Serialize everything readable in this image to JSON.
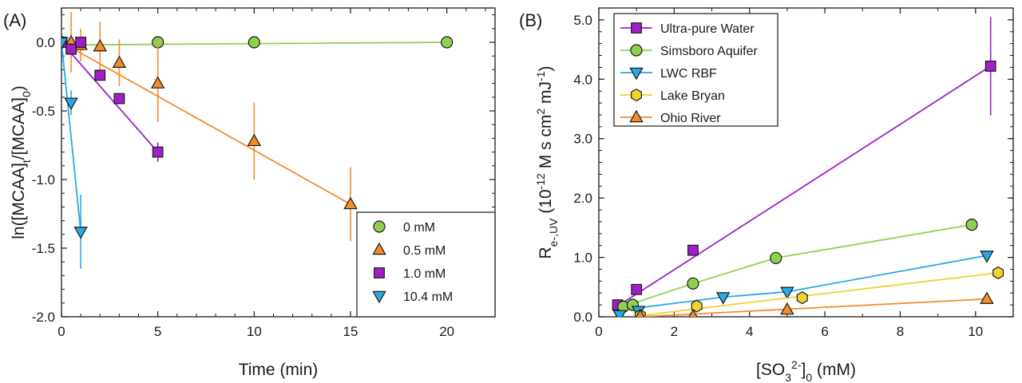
{
  "chart_data": [
    {
      "panel_label": "(A)",
      "type": "scatter",
      "xlabel": "Time (min)",
      "ylabel_parts": [
        "ln([MCAA]",
        "t",
        "/[MCAA]",
        "0",
        ")"
      ],
      "xlim": [
        0,
        22.5
      ],
      "ylim": [
        -2.0,
        0.25
      ],
      "x_ticks": [
        0,
        5,
        10,
        15,
        20
      ],
      "x_tick_labels": [
        "0",
        "5",
        "10",
        "15",
        "20"
      ],
      "y_ticks": [
        0,
        -0.5,
        -1.0,
        -1.5,
        -2.0
      ],
      "y_tick_labels": [
        "0.0",
        "-0.5",
        "-1.0",
        "-1.5",
        "-2.0"
      ],
      "legend_position": "bottom-right",
      "series": [
        {
          "name": "0 mM",
          "color": "#8fd14f",
          "marker": "circle",
          "x": [
            0,
            5,
            10,
            20
          ],
          "y": [
            0,
            0,
            0,
            0
          ],
          "err": [
            0,
            0,
            0,
            0
          ],
          "fit_x": [
            0,
            20
          ],
          "fit_y": [
            -0.02,
            0.0
          ]
        },
        {
          "name": "0.5 mM",
          "color": "#f68b2a",
          "marker": "triangle-up",
          "x": [
            0,
            0.5,
            1,
            2,
            3,
            5,
            10,
            15
          ],
          "y": [
            0,
            0,
            -0.02,
            -0.03,
            -0.15,
            -0.3,
            -0.72,
            -1.18
          ],
          "err": [
            0,
            0.22,
            0.12,
            0.18,
            0.17,
            0.28,
            0.28,
            0.27
          ],
          "fit_x": [
            0,
            15
          ],
          "fit_y": [
            0,
            -1.18
          ]
        },
        {
          "name": "1.0 mM",
          "color": "#a020c8",
          "marker": "square",
          "x": [
            0,
            0.5,
            1,
            2,
            3,
            5
          ],
          "y": [
            0,
            -0.05,
            0,
            -0.24,
            -0.41,
            -0.8
          ],
          "err": [
            0,
            0.03,
            0.04,
            0.03,
            0.03,
            0.07
          ],
          "fit_x": [
            0,
            5
          ],
          "fit_y": [
            0,
            -0.8
          ]
        },
        {
          "name": "10.4 mM",
          "color": "#27aae1",
          "marker": "triangle-down",
          "x": [
            0,
            0.5,
            1
          ],
          "y": [
            0,
            -0.44,
            -1.38
          ],
          "err": [
            0,
            0.09,
            0.27
          ],
          "fit_x": [
            0,
            1
          ],
          "fit_y": [
            0,
            -1.38
          ]
        }
      ]
    },
    {
      "panel_label": "(B)",
      "type": "scatter",
      "xlabel_parts": [
        "[SO",
        "3",
        "2-",
        "]",
        "0",
        " (mM)"
      ],
      "ylabel_parts": [
        "R",
        "e-,UV",
        " (10",
        "-12",
        " M s cm",
        "2",
        " mJ",
        "-1",
        ")"
      ],
      "xlim": [
        0,
        11
      ],
      "ylim": [
        0,
        5.2
      ],
      "x_ticks": [
        0,
        2,
        4,
        6,
        8,
        10
      ],
      "x_tick_labels": [
        "0",
        "2",
        "4",
        "6",
        "8",
        "10"
      ],
      "y_ticks": [
        0,
        1,
        2,
        3,
        4,
        5
      ],
      "y_tick_labels": [
        "0.0",
        "1.0",
        "2.0",
        "3.0",
        "4.0",
        "5.0"
      ],
      "legend_position": "top-left",
      "series": [
        {
          "name": "Ultra-pure Water",
          "color": "#a020c8",
          "marker": "square",
          "x": [
            0.5,
            1.0,
            2.5,
            10.4
          ],
          "y": [
            0.2,
            0.46,
            1.12,
            4.22
          ],
          "err": [
            0,
            0,
            0,
            0.83
          ],
          "fit_x": [
            0.5,
            10.4
          ],
          "fit_y": [
            0.18,
            4.22
          ]
        },
        {
          "name": "Simsboro Aquifer",
          "color": "#8fd14f",
          "marker": "circle",
          "x": [
            0.65,
            0.9,
            2.5,
            4.7,
            9.9
          ],
          "y": [
            0.17,
            0.2,
            0.56,
            0.99,
            1.55
          ],
          "err": [
            0,
            0,
            0,
            0,
            0
          ],
          "fit_x": [
            0.65,
            2.5,
            4.7,
            9.9
          ],
          "fit_y": [
            0.17,
            0.56,
            0.99,
            1.55
          ]
        },
        {
          "name": "LWC RBF",
          "color": "#27aae1",
          "marker": "triangle-down",
          "x": [
            0.55,
            1.05,
            3.3,
            5.0,
            10.3
          ],
          "y": [
            0.03,
            0.1,
            0.33,
            0.42,
            1.03
          ],
          "err": [
            0,
            0,
            0,
            0,
            0
          ],
          "fit_x": [
            1.05,
            3.3,
            5.0,
            10.3
          ],
          "fit_y": [
            0.15,
            0.33,
            0.42,
            1.03
          ]
        },
        {
          "name": "Lake Bryan",
          "color": "#f2d22e",
          "marker": "hexagon",
          "x": [
            1.1,
            2.6,
            5.4,
            10.6
          ],
          "y": [
            0.02,
            0.18,
            0.32,
            0.74
          ],
          "err": [
            0,
            0,
            0,
            0
          ],
          "fit_x": [
            1.1,
            10.6
          ],
          "fit_y": [
            0.02,
            0.74
          ]
        },
        {
          "name": "Ohio River",
          "color": "#f68b2a",
          "marker": "triangle-up",
          "x": [
            1.1,
            2.5,
            5.0,
            10.3
          ],
          "y": [
            0.01,
            0.01,
            0.12,
            0.3
          ],
          "err": [
            0,
            0,
            0,
            0
          ],
          "fit_x": [
            1.1,
            10.3
          ],
          "fit_y": [
            0.0,
            0.3
          ]
        }
      ]
    }
  ]
}
